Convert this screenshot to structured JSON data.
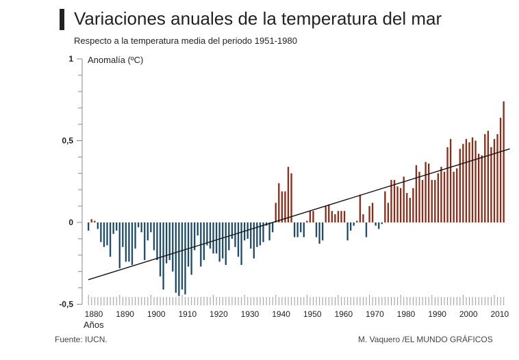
{
  "header": {
    "title": "Variaciones anuales de la temperatura del mar",
    "subtitle": "Respecto a la temperatura media del periodo 1951-1980"
  },
  "footer": {
    "source": "Fuente: IUCN.",
    "credit": "M. Vaquero /EL MUNDO GRÁFICOS"
  },
  "chart_data": {
    "type": "bar",
    "title": "Variaciones anuales de la temperatura del mar",
    "subtitle": "Respecto a la temperatura media del periodo 1951-1980",
    "ylabel": "Anomalía (ºC)",
    "xlabel": "Años",
    "ylim": [
      -0.5,
      1
    ],
    "yticks": [
      1,
      0.5,
      0,
      -0.5
    ],
    "ytick_labels": [
      "1",
      "0,5",
      "0",
      "-0,5"
    ],
    "xticks": [
      1880,
      1890,
      1900,
      1910,
      1920,
      1930,
      1940,
      1950,
      1960,
      1970,
      1980,
      1990,
      2000,
      2010
    ],
    "xtick_labels": [
      "1880",
      "1890",
      "1900",
      "1910",
      "1920",
      "1930",
      "1940",
      "1950",
      "1960",
      "1970",
      "1980",
      "1990",
      "2000",
      "2010"
    ],
    "x_start": 1880,
    "values": [
      -0.05,
      0.02,
      0.01,
      -0.04,
      -0.12,
      -0.15,
      -0.14,
      -0.21,
      -0.07,
      -0.05,
      -0.28,
      -0.15,
      -0.24,
      -0.24,
      -0.26,
      -0.16,
      -0.03,
      -0.06,
      -0.23,
      -0.11,
      -0.06,
      -0.17,
      -0.23,
      -0.33,
      -0.41,
      -0.25,
      -0.23,
      -0.3,
      -0.43,
      -0.45,
      -0.41,
      -0.44,
      -0.27,
      -0.32,
      -0.17,
      -0.08,
      -0.27,
      -0.23,
      -0.14,
      -0.16,
      -0.19,
      -0.19,
      -0.24,
      -0.22,
      -0.26,
      -0.17,
      -0.1,
      -0.15,
      -0.21,
      -0.26,
      -0.11,
      -0.1,
      -0.16,
      -0.22,
      -0.15,
      -0.14,
      -0.12,
      -0.02,
      -0.11,
      -0.06,
      0.12,
      0.24,
      0.19,
      0.19,
      0.34,
      0.3,
      -0.09,
      -0.09,
      -0.06,
      -0.09,
      0.01,
      0.07,
      0.07,
      -0.09,
      -0.13,
      -0.11,
      0.1,
      0.11,
      0.07,
      0.05,
      0.07,
      0.07,
      0.07,
      -0.11,
      -0.05,
      -0.02,
      0.01,
      0.17,
      0.05,
      -0.09,
      0.1,
      0.12,
      -0.02,
      -0.04,
      -0.01,
      0.19,
      0.12,
      0.26,
      0.26,
      0.22,
      0.21,
      0.28,
      0.18,
      0.15,
      0.21,
      0.35,
      0.31,
      0.26,
      0.37,
      0.36,
      0.26,
      0.26,
      0.3,
      0.34,
      0.31,
      0.46,
      0.51,
      0.31,
      0.33,
      0.45,
      0.48,
      0.51,
      0.49,
      0.52,
      0.5,
      0.42,
      0.41,
      0.54,
      0.56,
      0.46,
      0.51,
      0.54,
      0.64,
      0.74
    ],
    "trend_line": {
      "x": [
        1880,
        2015
      ],
      "y": [
        -0.35,
        0.45
      ]
    },
    "colors": {
      "positive": "#8a2a17",
      "negative": "#1d4a69",
      "trend": "#111111",
      "axis": "#888888"
    },
    "grid": false,
    "legend": "none"
  }
}
